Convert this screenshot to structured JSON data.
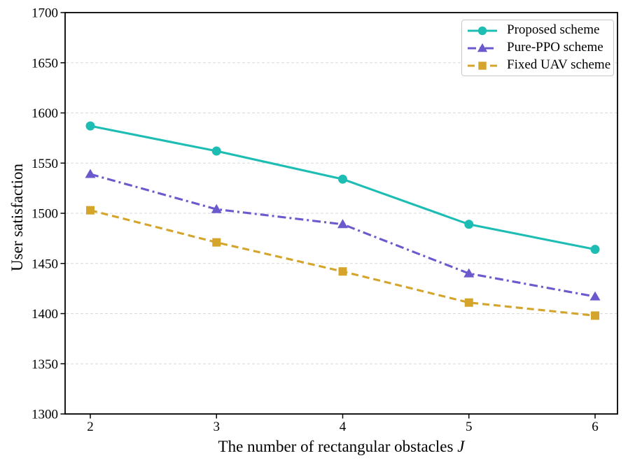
{
  "figure": {
    "background": "#ffffff",
    "axis_color": "#000000",
    "grid_color": "#d8d8d8",
    "legend_border_color": "#c9c9c9"
  },
  "chart_data": {
    "type": "line",
    "title": "",
    "xlabel": "The number of rectangular obstacles",
    "xlabel_variable": "J",
    "ylabel": "User satisfaction",
    "x": [
      2,
      3,
      4,
      5,
      6
    ],
    "xticks": [
      "2",
      "3",
      "4",
      "5",
      "6"
    ],
    "yticks": [
      1300,
      1350,
      1400,
      1450,
      1500,
      1550,
      1600,
      1650,
      1700
    ],
    "xlim": [
      1.8,
      6.18
    ],
    "ylim": [
      1300,
      1700
    ],
    "grid": "horizontal-dashed",
    "legend_position": "upper-right",
    "series": [
      {
        "name": "Proposed scheme",
        "values": [
          1587,
          1562,
          1534,
          1489,
          1464
        ],
        "color": "#1dbdb3",
        "line_style": "solid",
        "marker": "circle"
      },
      {
        "name": "Pure-PPO scheme",
        "values": [
          1539,
          1504,
          1489,
          1440,
          1417
        ],
        "color": "#6a5acd",
        "line_style": "dash-dot",
        "marker": "triangle-up"
      },
      {
        "name": "Fixed UAV scheme",
        "values": [
          1503,
          1471,
          1442,
          1411,
          1398
        ],
        "color": "#d5a42a",
        "line_style": "dashed",
        "marker": "square"
      }
    ]
  }
}
